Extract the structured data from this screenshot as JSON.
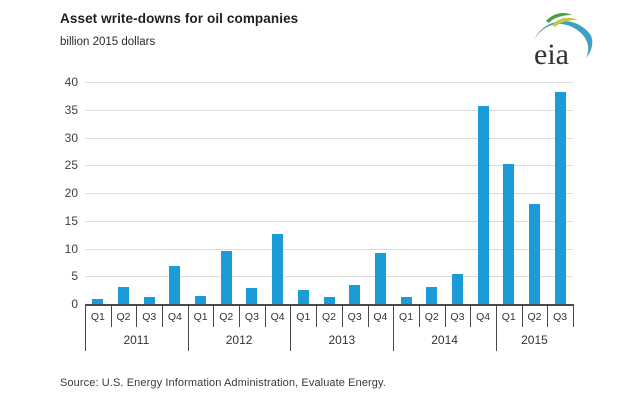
{
  "header": {
    "title": "Asset write-downs for oil companies",
    "subtitle": "billion 2015 dollars"
  },
  "logo": {
    "text": "eia",
    "swoosh_blue": "#3f9fc4",
    "leaf_dark_green": "#4f9d45",
    "leaf_lime": "#bfce40",
    "text_color": "#333333"
  },
  "chart_data": {
    "type": "bar",
    "title": "Asset write-downs for oil companies",
    "ylabel_unit": "billion 2015 dollars",
    "xlabel": "",
    "ylim": [
      0,
      40
    ],
    "yticks": [
      0,
      5,
      10,
      15,
      20,
      25,
      30,
      35,
      40
    ],
    "grid": "horizontal",
    "bar_color": "#1b9cd8",
    "gridline_color": "#dcdcdc",
    "axis_color": "#4a4a4a",
    "tick_text_color": "#404040",
    "groups": [
      {
        "year": "2011",
        "quarters": [
          "Q1",
          "Q2",
          "Q3",
          "Q4"
        ]
      },
      {
        "year": "2012",
        "quarters": [
          "Q1",
          "Q2",
          "Q3",
          "Q4"
        ]
      },
      {
        "year": "2013",
        "quarters": [
          "Q1",
          "Q2",
          "Q3",
          "Q4"
        ]
      },
      {
        "year": "2014",
        "quarters": [
          "Q1",
          "Q2",
          "Q3",
          "Q4"
        ]
      },
      {
        "year": "2015",
        "quarters": [
          "Q1",
          "Q2",
          "Q3"
        ]
      }
    ],
    "categories": [
      "2011 Q1",
      "2011 Q2",
      "2011 Q3",
      "2011 Q4",
      "2012 Q1",
      "2012 Q2",
      "2012 Q3",
      "2012 Q4",
      "2013 Q1",
      "2013 Q2",
      "2013 Q3",
      "2013 Q4",
      "2014 Q1",
      "2014 Q2",
      "2014 Q3",
      "2014 Q4",
      "2015 Q1",
      "2015 Q2",
      "2015 Q3"
    ],
    "values": [
      0.9,
      3.1,
      1.3,
      6.8,
      1.4,
      9.5,
      2.9,
      12.6,
      2.6,
      1.3,
      3.5,
      9.2,
      1.3,
      3.0,
      5.4,
      35.6,
      25.2,
      18.0,
      38.2
    ]
  },
  "footer": {
    "source": "Source:  U.S. Energy Information Administration, Evaluate Energy."
  }
}
